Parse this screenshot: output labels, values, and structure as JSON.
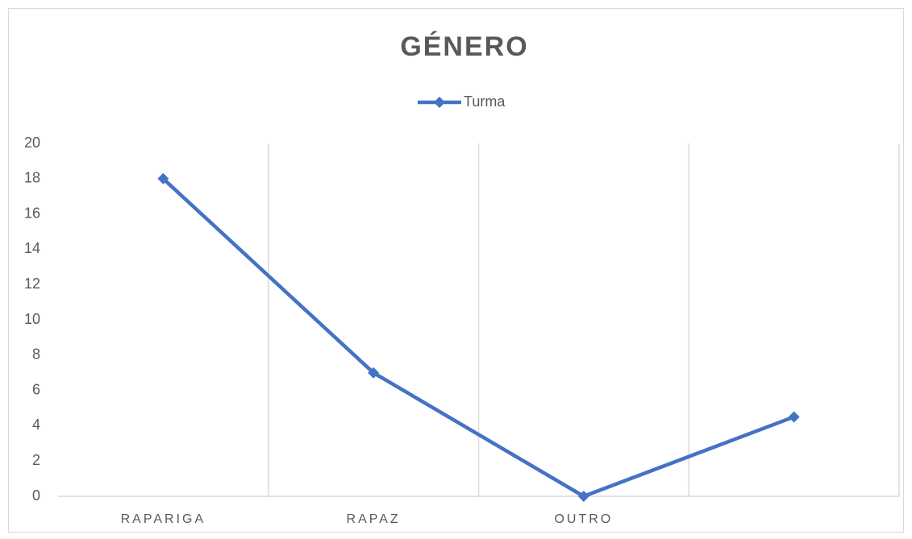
{
  "chart_data": {
    "type": "line",
    "title": "GÉNERO",
    "categories": [
      "RAPARIGA",
      "RAPAZ",
      "OUTRO",
      null
    ],
    "series": [
      {
        "name": "Turma",
        "color": "#4472c4",
        "values": [
          18,
          7,
          0,
          4.5
        ]
      }
    ],
    "ylim": [
      0,
      20
    ],
    "yticks": [
      0,
      2,
      4,
      6,
      8,
      10,
      12,
      14,
      16,
      18,
      20
    ],
    "grid": "vertical",
    "legend": "top"
  }
}
